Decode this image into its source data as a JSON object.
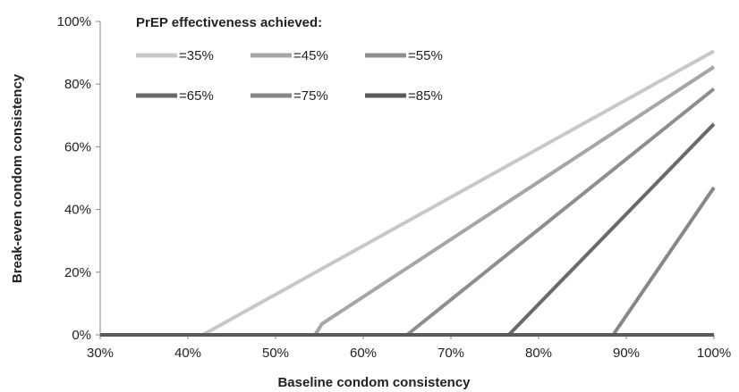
{
  "chart_data": {
    "type": "line",
    "title": "",
    "xlabel": "Baseline condom consistency",
    "ylabel": "Break-even condom consistency",
    "xlim": [
      30,
      100
    ],
    "ylim": [
      0,
      100
    ],
    "x_ticks": [
      "30%",
      "40%",
      "50%",
      "60%",
      "70%",
      "80%",
      "90%",
      "100%"
    ],
    "y_ticks": [
      "0%",
      "20%",
      "40%",
      "60%",
      "80%",
      "100%"
    ],
    "grid": false,
    "legend": {
      "title": "PrEP effectiveness achieved:",
      "placement": "top-left"
    },
    "series": [
      {
        "name": "=35%",
        "color": "#c8c8c8",
        "x": [
          30,
          41.7,
          100
        ],
        "y": [
          0,
          0,
          90.5
        ]
      },
      {
        "name": "=45%",
        "color": "#a6a6a6",
        "x": [
          30,
          54.5,
          55.3,
          100
        ],
        "y": [
          0,
          0,
          3.5,
          85.5
        ]
      },
      {
        "name": "=55%",
        "color": "#8e8e8e",
        "x": [
          30,
          65.0,
          100
        ],
        "y": [
          0,
          0,
          78.5
        ]
      },
      {
        "name": "=65%",
        "color": "#6a6a6a",
        "x": [
          30,
          76.6,
          100
        ],
        "y": [
          0,
          0,
          67.3
        ]
      },
      {
        "name": "=75%",
        "color": "#878787",
        "x": [
          30,
          88.5,
          100
        ],
        "y": [
          0,
          0,
          47.0
        ]
      },
      {
        "name": "=85%",
        "color": "#5a5a5a",
        "x": [
          30,
          100
        ],
        "y": [
          0,
          0
        ]
      }
    ]
  }
}
